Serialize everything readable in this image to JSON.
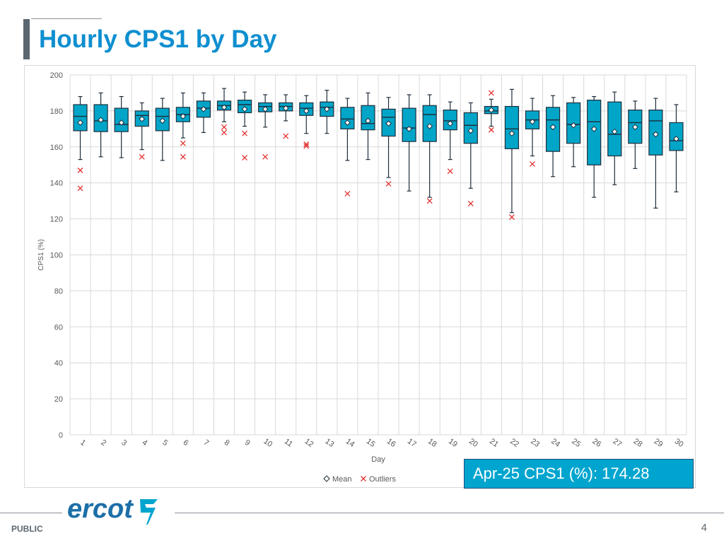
{
  "slide": {
    "title": "Hourly CPS1 by Day",
    "callout": "Apr-25 CPS1 (%): 174.28",
    "footer_label": "PUBLIC",
    "page_number": "4",
    "logo_text": "ercot"
  },
  "colors": {
    "title": "#0f8fd0",
    "box_fill": "#00a5c8",
    "box_stroke": "#1f2d3a",
    "outlier": "#e0302e",
    "grid": "#d9d9d9",
    "callout_bg": "#00a5cf",
    "logo": "#1d6fa8"
  },
  "chart_data": {
    "type": "box",
    "xlabel": "Day",
    "ylabel": "CPS1 (%)",
    "ylim": [
      0,
      200
    ],
    "yticks": [
      0,
      20,
      40,
      60,
      80,
      100,
      120,
      140,
      160,
      180,
      200
    ],
    "grid": true,
    "legend_position": "bottom",
    "legend": [
      {
        "label": "Mean",
        "marker": "diamond"
      },
      {
        "label": "Outliers",
        "marker": "x"
      }
    ],
    "categories": [
      "1",
      "2",
      "3",
      "4",
      "5",
      "6",
      "7",
      "8",
      "9",
      "10",
      "11",
      "12",
      "13",
      "14",
      "15",
      "16",
      "17",
      "18",
      "19",
      "20",
      "21",
      "22",
      "23",
      "24",
      "25",
      "26",
      "27",
      "28",
      "29",
      "30"
    ],
    "boxes": [
      {
        "day": "1",
        "min": 153,
        "q1": 169,
        "median": 177,
        "q3": 183.5,
        "max": 188,
        "mean": 173.5,
        "outliers": [
          147,
          137
        ]
      },
      {
        "day": "2",
        "min": 154.5,
        "q1": 168.5,
        "median": 174.5,
        "q3": 183.5,
        "max": 190,
        "mean": 175,
        "outliers": []
      },
      {
        "day": "3",
        "min": 154,
        "q1": 168.5,
        "median": 172.5,
        "q3": 181.5,
        "max": 188,
        "mean": 173.5,
        "outliers": []
      },
      {
        "day": "4",
        "min": 158.5,
        "q1": 171.5,
        "median": 177.5,
        "q3": 180,
        "max": 184.5,
        "mean": 175.5,
        "outliers": [
          154.5
        ]
      },
      {
        "day": "5",
        "min": 152.5,
        "q1": 169,
        "median": 177,
        "q3": 181.5,
        "max": 187,
        "mean": 174.5,
        "outliers": []
      },
      {
        "day": "6",
        "min": 165,
        "q1": 174,
        "median": 178,
        "q3": 182,
        "max": 190,
        "mean": 177,
        "outliers": [
          162,
          154.5
        ]
      },
      {
        "day": "7",
        "min": 168,
        "q1": 176.5,
        "median": 181.5,
        "q3": 185.5,
        "max": 190,
        "mean": 181,
        "outliers": []
      },
      {
        "day": "8",
        "min": 174,
        "q1": 180.5,
        "median": 183,
        "q3": 185.5,
        "max": 192.5,
        "mean": 182,
        "outliers": [
          171,
          168
        ]
      },
      {
        "day": "9",
        "min": 171.5,
        "q1": 179,
        "median": 183.5,
        "q3": 186,
        "max": 190.5,
        "mean": 181,
        "outliers": [
          167.5,
          154
        ]
      },
      {
        "day": "10",
        "min": 171,
        "q1": 179.5,
        "median": 182.5,
        "q3": 184.5,
        "max": 189,
        "mean": 181,
        "outliers": [
          154.5
        ]
      },
      {
        "day": "11",
        "min": 174.5,
        "q1": 180,
        "median": 182.5,
        "q3": 184.5,
        "max": 189,
        "mean": 181.5,
        "outliers": [
          166
        ]
      },
      {
        "day": "12",
        "min": 167.5,
        "q1": 177.5,
        "median": 181.5,
        "q3": 184.5,
        "max": 188.5,
        "mean": 180,
        "outliers": [
          161.5,
          160.5
        ]
      },
      {
        "day": "13",
        "min": 167.5,
        "q1": 177,
        "median": 182,
        "q3": 185,
        "max": 191.5,
        "mean": 181,
        "outliers": []
      },
      {
        "day": "14",
        "min": 152.5,
        "q1": 170,
        "median": 175.5,
        "q3": 182,
        "max": 187,
        "mean": 173.5,
        "outliers": [
          134
        ]
      },
      {
        "day": "15",
        "min": 153,
        "q1": 169.5,
        "median": 173,
        "q3": 183,
        "max": 190,
        "mean": 174.5,
        "outliers": []
      },
      {
        "day": "16",
        "min": 143,
        "q1": 166,
        "median": 176.5,
        "q3": 181,
        "max": 187.5,
        "mean": 173,
        "outliers": [
          139.5
        ]
      },
      {
        "day": "17",
        "min": 135.5,
        "q1": 163,
        "median": 170.5,
        "q3": 181.5,
        "max": 189,
        "mean": 170,
        "outliers": []
      },
      {
        "day": "18",
        "min": 132,
        "q1": 163,
        "median": 178,
        "q3": 183,
        "max": 189,
        "mean": 171.5,
        "outliers": [
          130
        ]
      },
      {
        "day": "19",
        "min": 153,
        "q1": 169.5,
        "median": 174.5,
        "q3": 180.5,
        "max": 185,
        "mean": 173,
        "outliers": [
          146.5
        ]
      },
      {
        "day": "20",
        "min": 137,
        "q1": 162,
        "median": 172,
        "q3": 179,
        "max": 184.5,
        "mean": 169,
        "outliers": [
          128.5
        ]
      },
      {
        "day": "21",
        "min": 171.5,
        "q1": 178.5,
        "median": 180,
        "q3": 182.5,
        "max": 186.5,
        "mean": 180.5,
        "outliers": [
          190,
          169.5
        ]
      },
      {
        "day": "22",
        "min": 123.5,
        "q1": 159,
        "median": 170,
        "q3": 182.5,
        "max": 192,
        "mean": 167.5,
        "outliers": [
          121
        ]
      },
      {
        "day": "23",
        "min": 155,
        "q1": 170,
        "median": 175,
        "q3": 180,
        "max": 187,
        "mean": 174,
        "outliers": [
          150.5
        ]
      },
      {
        "day": "24",
        "min": 143.5,
        "q1": 157.5,
        "median": 175,
        "q3": 182,
        "max": 188.5,
        "mean": 171,
        "outliers": []
      },
      {
        "day": "25",
        "min": 149,
        "q1": 162,
        "median": 172.5,
        "q3": 184.5,
        "max": 187.5,
        "mean": 172,
        "outliers": []
      },
      {
        "day": "26",
        "min": 132,
        "q1": 150,
        "median": 174,
        "q3": 186,
        "max": 188,
        "mean": 170,
        "outliers": []
      },
      {
        "day": "27",
        "min": 139,
        "q1": 155,
        "median": 167,
        "q3": 185,
        "max": 190.5,
        "mean": 168.5,
        "outliers": []
      },
      {
        "day": "28",
        "min": 148,
        "q1": 162,
        "median": 173.5,
        "q3": 180.5,
        "max": 185.5,
        "mean": 171,
        "outliers": []
      },
      {
        "day": "29",
        "min": 126,
        "q1": 155.5,
        "median": 174.5,
        "q3": 180.5,
        "max": 187,
        "mean": 167,
        "outliers": []
      },
      {
        "day": "30",
        "min": 135,
        "q1": 158,
        "median": 163.5,
        "q3": 173.5,
        "max": 183.5,
        "mean": 164.5,
        "outliers": []
      }
    ]
  }
}
